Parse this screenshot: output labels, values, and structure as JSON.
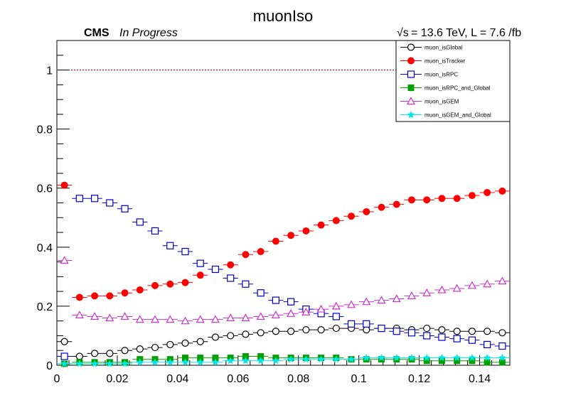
{
  "chart_data": {
    "type": "scatter",
    "title": "muonIso",
    "label_left_bold": "CMS",
    "label_left_italic": "In Progress",
    "label_right_sqrt": "√s",
    "label_right": " = 13.6 TeV, L = 7.6 /fb",
    "xlabel": "",
    "ylabel": "",
    "xlim": [
      0,
      0.15
    ],
    "ylim": [
      0,
      1.1
    ],
    "xticks": [
      0,
      0.02,
      0.04,
      0.06,
      0.08,
      0.1,
      0.12,
      0.14
    ],
    "xtick_labels": [
      "0",
      "0.02",
      "0.04",
      "0.06",
      "0.08",
      "0.1",
      "0.12",
      "0.14"
    ],
    "yticks": [
      0,
      0.2,
      0.4,
      0.6,
      0.8,
      1
    ],
    "ytick_labels": [
      "0",
      "0.2",
      "0.4",
      "0.6",
      "0.8",
      "1"
    ],
    "reference_line": 1,
    "legend_position": "top-right",
    "grid": false,
    "x": [
      0.0025,
      0.0075,
      0.0125,
      0.0175,
      0.0225,
      0.0275,
      0.0325,
      0.0375,
      0.0425,
      0.0475,
      0.0525,
      0.0575,
      0.0625,
      0.0675,
      0.0725,
      0.0775,
      0.0825,
      0.0875,
      0.0925,
      0.0975,
      0.1025,
      0.1075,
      0.1125,
      0.1175,
      0.1225,
      0.1275,
      0.1325,
      0.1375,
      0.1425,
      0.1475
    ],
    "series": [
      {
        "name": "muon_isGlobal",
        "color": "#000000",
        "marker": "open-circle",
        "values": [
          0.08,
          0.03,
          0.04,
          0.04,
          0.05,
          0.055,
          0.06,
          0.07,
          0.075,
          0.08,
          0.095,
          0.1,
          0.105,
          0.11,
          0.115,
          0.115,
          0.12,
          0.12,
          0.125,
          0.125,
          0.12,
          0.125,
          0.125,
          0.12,
          0.125,
          0.12,
          0.115,
          0.115,
          0.115,
          0.11
        ]
      },
      {
        "name": "muon_isTracker",
        "color": "#ff0000",
        "marker": "filled-circle",
        "values": [
          0.61,
          0.23,
          0.235,
          0.235,
          0.245,
          0.255,
          0.27,
          0.275,
          0.28,
          0.305,
          0.325,
          0.34,
          0.375,
          0.385,
          0.42,
          0.44,
          0.455,
          0.475,
          0.49,
          0.505,
          0.52,
          0.535,
          0.545,
          0.56,
          0.56,
          0.565,
          0.565,
          0.575,
          0.585,
          0.59
        ]
      },
      {
        "name": "muon_isRPC",
        "color": "#0000cc",
        "marker": "open-square",
        "values": [
          0.03,
          0.565,
          0.565,
          0.55,
          0.53,
          0.485,
          0.455,
          0.405,
          0.385,
          0.345,
          0.325,
          0.295,
          0.275,
          0.245,
          0.22,
          0.215,
          0.19,
          0.175,
          0.165,
          0.14,
          0.14,
          0.125,
          0.115,
          0.11,
          0.1,
          0.095,
          0.09,
          0.085,
          0.07,
          0.065
        ]
      },
      {
        "name": "muon_isRPC_and_Global",
        "color": "#00a000",
        "marker": "filled-square",
        "values": [
          0.005,
          0.01,
          0.01,
          0.01,
          0.01,
          0.02,
          0.02,
          0.02,
          0.025,
          0.025,
          0.025,
          0.025,
          0.03,
          0.03,
          0.025,
          0.025,
          0.025,
          0.025,
          0.025,
          0.02,
          0.02,
          0.02,
          0.02,
          0.02,
          0.015,
          0.015,
          0.015,
          0.015,
          0.01,
          0.01
        ]
      },
      {
        "name": "muon_isGEM",
        "color": "#cc33cc",
        "marker": "open-triangle",
        "values": [
          0.355,
          0.17,
          0.165,
          0.16,
          0.165,
          0.155,
          0.155,
          0.155,
          0.15,
          0.155,
          0.155,
          0.16,
          0.16,
          0.165,
          0.17,
          0.175,
          0.18,
          0.19,
          0.2,
          0.205,
          0.215,
          0.22,
          0.225,
          0.235,
          0.245,
          0.255,
          0.26,
          0.27,
          0.275,
          0.285
        ]
      },
      {
        "name": "muon_isGEM_and_Global",
        "color": "#00e5e5",
        "marker": "filled-star",
        "values": [
          0.005,
          0.005,
          0.005,
          0.005,
          0.005,
          0.01,
          0.01,
          0.01,
          0.01,
          0.01,
          0.01,
          0.015,
          0.015,
          0.015,
          0.015,
          0.02,
          0.02,
          0.02,
          0.02,
          0.02,
          0.025,
          0.025,
          0.025,
          0.025,
          0.025,
          0.025,
          0.025,
          0.025,
          0.025,
          0.025
        ]
      }
    ]
  }
}
